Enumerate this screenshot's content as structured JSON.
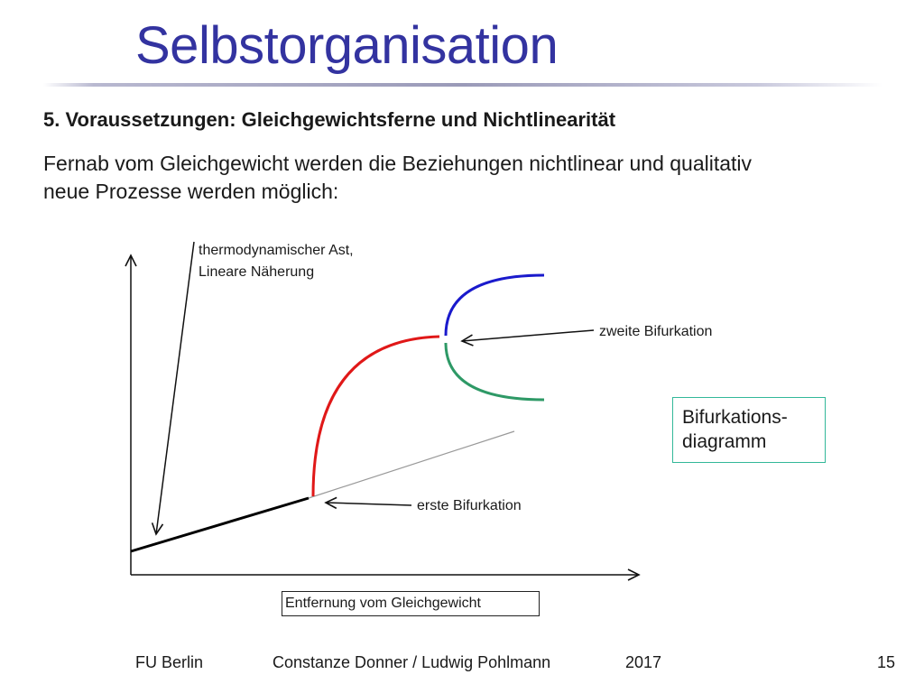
{
  "slide": {
    "title": "Selbstorganisation",
    "heading": "5. Voraussetzungen: Gleichgewichtsferne und Nichtlinearität",
    "body": "Fernab vom Gleichgewicht werden die Beziehungen nichtlinear und qualitativ neue Prozesse werden möglich:"
  },
  "diagram": {
    "annotation_thermo_line1": "thermodynamischer Ast,",
    "annotation_thermo_line2": "Lineare Näherung",
    "annotation_second_bifurcation": "zweite Bifurkation",
    "annotation_first_bifurcation": "erste Bifurkation",
    "x_axis_label": "Entfernung vom Gleichgewicht",
    "legend_line1": "Bifurkations-",
    "legend_line2": "diagramm",
    "colors": {
      "thermo_branch": "#000000",
      "extension": "#999999",
      "first_branch": "#e01818",
      "upper_second_branch": "#1a1acc",
      "lower_second_branch": "#2e9966",
      "legend_border": "#33b899"
    }
  },
  "footer": {
    "institution": "FU Berlin",
    "authors": "Constanze Donner / Ludwig Pohlmann",
    "year": "2017",
    "page": "15"
  }
}
